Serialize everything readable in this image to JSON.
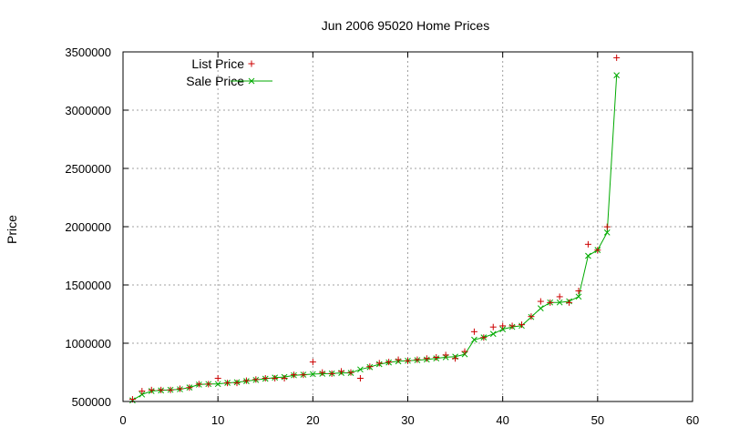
{
  "chart_data": {
    "type": "line",
    "title": "Jun 2006 95020 Home Prices",
    "xlabel": "",
    "ylabel": "Price",
    "xlim": [
      0,
      60
    ],
    "ylim": [
      500000,
      3500000
    ],
    "xticks": [
      0,
      10,
      20,
      30,
      40,
      50,
      60
    ],
    "yticks": [
      500000,
      1000000,
      1500000,
      2000000,
      2500000,
      3000000,
      3500000
    ],
    "xtick_labels": [
      "0",
      "10",
      "20",
      "30",
      "40",
      "50",
      "60"
    ],
    "ytick_labels": [
      "500000",
      "1000000",
      "1500000",
      "2000000",
      "2500000",
      "3000000",
      "3500000"
    ],
    "grid": true,
    "legend_position": "top-left",
    "series": [
      {
        "name": "List Price",
        "style": "points",
        "marker": "plus",
        "color": "#cc0000",
        "x": [
          1,
          2,
          3,
          4,
          5,
          6,
          7,
          8,
          9,
          10,
          11,
          12,
          13,
          14,
          15,
          16,
          17,
          18,
          19,
          20,
          21,
          22,
          23,
          24,
          25,
          26,
          27,
          28,
          29,
          30,
          31,
          32,
          33,
          34,
          35,
          36,
          37,
          38,
          39,
          40,
          41,
          42,
          43,
          44,
          45,
          46,
          47,
          48,
          49,
          50,
          51,
          52
        ],
        "values": [
          519000,
          589000,
          599000,
          599000,
          599000,
          609000,
          619000,
          649000,
          649000,
          699000,
          659000,
          659000,
          679000,
          689000,
          699000,
          699000,
          699000,
          729000,
          729000,
          839000,
          749000,
          739000,
          759000,
          749000,
          699000,
          799000,
          829000,
          839000,
          859000,
          849000,
          859000,
          869000,
          879000,
          899000,
          869000,
          929000,
          1099000,
          1049000,
          1139000,
          1149000,
          1149000,
          1159000,
          1229000,
          1359000,
          1349000,
          1399000,
          1349000,
          1449000,
          1849000,
          1799000,
          1999000,
          3450000
        ]
      },
      {
        "name": "Sale Price",
        "style": "linespoints",
        "marker": "cross",
        "color": "#00aa00",
        "x": [
          1,
          2,
          3,
          4,
          5,
          6,
          7,
          8,
          9,
          10,
          11,
          12,
          13,
          14,
          15,
          16,
          17,
          18,
          19,
          20,
          21,
          22,
          23,
          24,
          25,
          26,
          27,
          28,
          29,
          30,
          31,
          32,
          33,
          34,
          35,
          36,
          37,
          38,
          39,
          40,
          41,
          42,
          43,
          44,
          45,
          46,
          47,
          48,
          49,
          50,
          51,
          52
        ],
        "values": [
          510000,
          560000,
          590000,
          595000,
          600000,
          605000,
          620000,
          645000,
          650000,
          650000,
          660000,
          665000,
          675000,
          685000,
          695000,
          705000,
          710000,
          725000,
          730000,
          735000,
          738000,
          740000,
          745000,
          745000,
          775000,
          795000,
          820000,
          835000,
          845000,
          850000,
          855000,
          860000,
          870000,
          880000,
          885000,
          905000,
          1030000,
          1050000,
          1080000,
          1120000,
          1140000,
          1150000,
          1225000,
          1300000,
          1350000,
          1350000,
          1360000,
          1400000,
          1750000,
          1800000,
          1950000,
          3300000
        ]
      }
    ]
  }
}
